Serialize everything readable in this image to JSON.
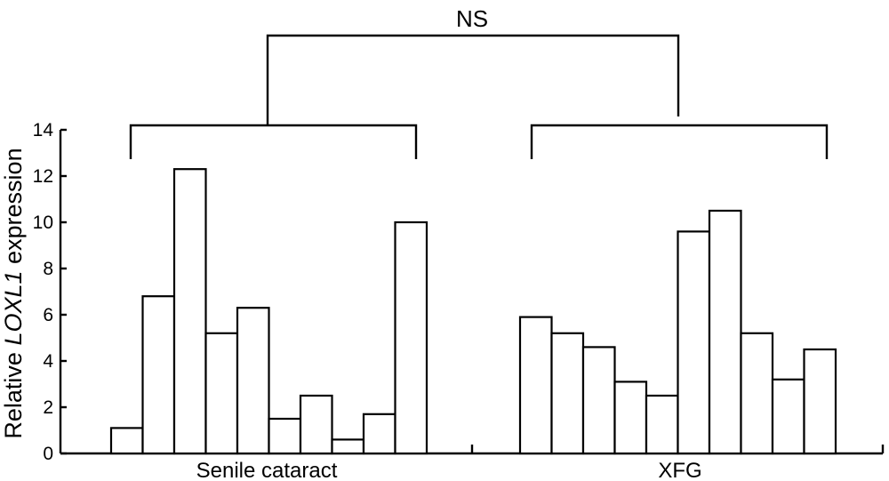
{
  "chart_data": {
    "type": "bar",
    "title": "",
    "ylabel_parts": [
      "Relative ",
      "LOXL1",
      " expression"
    ],
    "ylim": [
      0,
      14
    ],
    "yticks": [
      0,
      2,
      4,
      6,
      8,
      10,
      12,
      14
    ],
    "groups": [
      {
        "name": "Senile cataract",
        "values": [
          1.1,
          6.8,
          12.3,
          5.2,
          6.3,
          1.5,
          2.5,
          0.6,
          1.7,
          10.0
        ]
      },
      {
        "name": "XFG",
        "values": [
          5.9,
          5.2,
          4.6,
          3.1,
          2.5,
          9.6,
          10.5,
          5.2,
          3.2,
          4.5
        ]
      }
    ],
    "significance": "NS",
    "grid": false,
    "legend": "none"
  }
}
